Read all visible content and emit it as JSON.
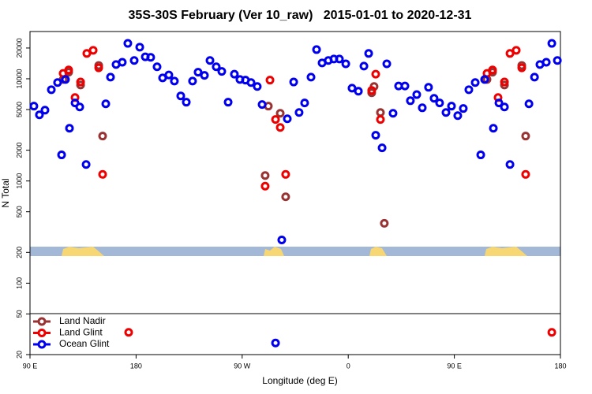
{
  "chart_data": {
    "type": "scatter",
    "title": "35S-30S February (Ver 10_raw)   2015-01-01 to 2020-12-31",
    "x_label": "Longitude (deg E)",
    "y_label": "N Total",
    "log_y": true,
    "legend": "lower left",
    "xlim": [
      90,
      540
    ],
    "ylim": [
      20,
      29000
    ],
    "xticks": [
      {
        "value": 90,
        "label": "90 E"
      },
      {
        "value": 180,
        "label": "180"
      },
      {
        "value": 270,
        "label": "90 W"
      },
      {
        "value": 360,
        "label": "0"
      },
      {
        "value": 450,
        "label": "90 E"
      },
      {
        "value": 540,
        "label": "180"
      }
    ],
    "yticks": [
      20,
      50,
      100,
      200,
      500,
      1000,
      2000,
      5000,
      10000,
      20000
    ],
    "series": [
      {
        "name": "Land Nadir",
        "color": "#993333",
        "x": [
          118.1,
          122.8,
          132.9,
          148.3,
          151.6,
          292.2,
          289.5,
          302.3,
          306.9,
          381.9,
          379.9,
          387.3,
          390.6,
          477.7,
          482.4,
          492.5,
          507.2,
          510.5
        ],
        "values": [
          9840,
          11600,
          8700,
          13500,
          2750,
          5400,
          1130,
          4600,
          700,
          8400,
          7300,
          4680,
          385,
          9840,
          11600,
          8700,
          13500,
          2750
        ]
      },
      {
        "name": "Land Glint",
        "color": "#ee0000",
        "x": [
          118.1,
          122.8,
          128.2,
          132.9,
          138.2,
          143.6,
          148.3,
          151.6,
          173.7,
          293.6,
          298.3,
          302.3,
          306.9,
          289.5,
          379.9,
          383.3,
          387.3,
          477.7,
          482.4,
          487.1,
          492.5,
          497.2,
          502.5,
          507.2,
          510.5,
          532.7
        ],
        "values": [
          11300,
          12200,
          6550,
          9300,
          17700,
          19000,
          12800,
          1160,
          33,
          9700,
          4000,
          3340,
          1160,
          890,
          7700,
          11100,
          4000,
          11300,
          12200,
          6550,
          9300,
          17700,
          19000,
          12800,
          1160,
          33
        ]
      },
      {
        "name": "Ocean Glint",
        "color": "#0000ee",
        "x": [
          93.3,
          98.0,
          102.7,
          108.1,
          113.4,
          116.8,
          120.1,
          123.5,
          128.2,
          132.2,
          137.6,
          154.3,
          158.3,
          163.0,
          168.3,
          173.0,
          178.4,
          183.1,
          187.8,
          192.4,
          197.8,
          202.5,
          207.8,
          212.5,
          217.9,
          222.6,
          227.9,
          232.6,
          238.0,
          242.7,
          248.0,
          252.7,
          258.1,
          263.4,
          268.1,
          272.8,
          277.5,
          282.8,
          286.9,
          303.6,
          308.3,
          313.7,
          318.3,
          323.0,
          328.4,
          333.1,
          337.8,
          343.1,
          347.8,
          352.5,
          357.9,
          363.2,
          368.6,
          373.3,
          377.3,
          383.3,
          388.7,
          392.7,
          398.0,
          402.7,
          408.1,
          412.7,
          418.1,
          422.8,
          428.1,
          432.8,
          437.5,
          442.9,
          447.6,
          452.9,
          457.6,
          462.3,
          467.7,
          472.4,
          475.7,
          483.1,
          487.8,
          492.5,
          497.2,
          513.3,
          518.0,
          522.6,
          528.0,
          532.7,
          537.4,
          298.3
        ],
        "values": [
          5400,
          4440,
          4930,
          7820,
          9180,
          1800,
          9840,
          3280,
          5800,
          5300,
          1450,
          5690,
          10380,
          13800,
          14500,
          22200,
          15100,
          20400,
          16400,
          16200,
          13100,
          10200,
          10900,
          9500,
          6800,
          5900,
          9500,
          11600,
          10800,
          15100,
          13100,
          11800,
          5900,
          11100,
          9840,
          9700,
          9180,
          8400,
          5600,
          265,
          4060,
          9300,
          4680,
          5800,
          10380,
          19300,
          14300,
          15100,
          15600,
          15600,
          14000,
          8100,
          7550,
          13300,
          17700,
          2800,
          2110,
          14000,
          4600,
          8500,
          8500,
          6100,
          7000,
          5200,
          8250,
          6440,
          5800,
          4680,
          5400,
          4360,
          5120,
          7820,
          9180,
          1800,
          9840,
          3280,
          5800,
          5300,
          1450,
          5690,
          10380,
          13800,
          14500,
          22200,
          15100,
          26
        ]
      }
    ]
  }
}
